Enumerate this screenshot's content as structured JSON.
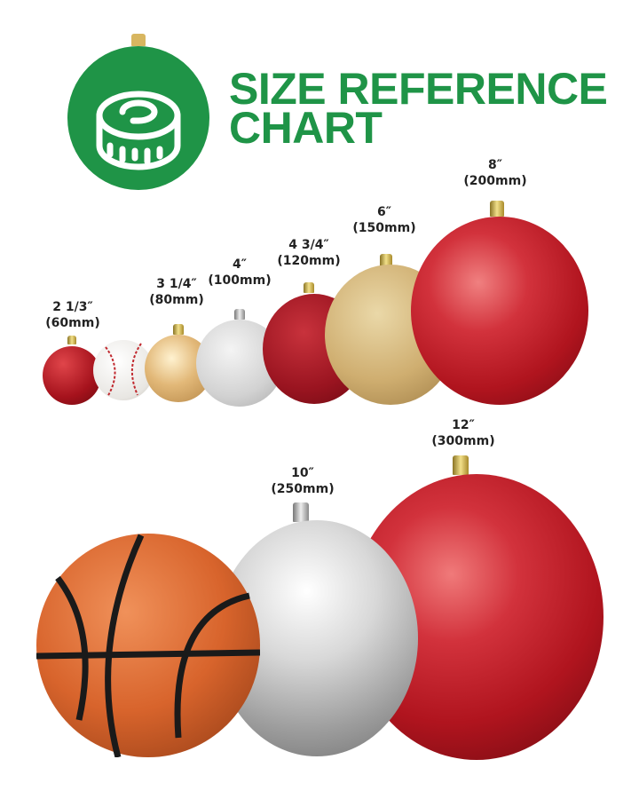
{
  "header": {
    "title_line1": "SIZE REFERENCE",
    "title_line2": "CHART",
    "logo_icon": "tape-measure-icon",
    "brand_color": "#1f9447"
  },
  "sizes": [
    {
      "inch": "2 1/3″",
      "mm": "(60mm)"
    },
    {
      "inch": "3 1/4″",
      "mm": "(80mm)"
    },
    {
      "inch": "4″",
      "mm": "(100mm)"
    },
    {
      "inch": "4 3/4″",
      "mm": "(120mm)"
    },
    {
      "inch": "6″",
      "mm": "(150mm)"
    },
    {
      "inch": "8″",
      "mm": "(200mm)"
    },
    {
      "inch": "10″",
      "mm": "(250mm)"
    },
    {
      "inch": "12″",
      "mm": "(300mm)"
    }
  ],
  "reference_objects": [
    "baseball",
    "basketball"
  ]
}
